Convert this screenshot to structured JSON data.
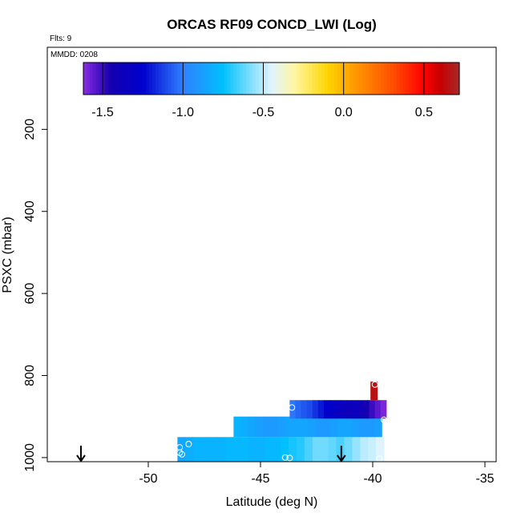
{
  "chart_data": {
    "type": "heatmap",
    "title": "ORCAS RF09 CONCD_LWI (Log)",
    "flights_label": "Flts: 9",
    "date_label": "MMDD: 0208",
    "xlabel": "Latitude (deg N)",
    "ylabel": "PSXC (mbar)",
    "xlim": [
      -54.5,
      -34.5
    ],
    "ylim": [
      1010,
      0
    ],
    "x_ticks": [
      -50,
      -45,
      -40,
      -35
    ],
    "y_ticks": [
      200,
      400,
      600,
      800,
      1000
    ],
    "x_tick_labels": [
      "-50",
      "-45",
      "-40",
      "-35"
    ],
    "y_tick_labels": [
      "200",
      "400",
      "600",
      "800",
      "1000"
    ],
    "colorbar": {
      "range": [
        -1.62,
        0.72
      ],
      "ticks": [
        -1.5,
        -1.0,
        -0.5,
        0.0,
        0.5
      ],
      "tick_labels": [
        "-1.5",
        "-1.0",
        "-0.5",
        "0.0",
        "0.5"
      ],
      "stops": [
        {
          "v": -1.62,
          "c": "#8a2be2"
        },
        {
          "v": -1.45,
          "c": "#1500b0"
        },
        {
          "v": -1.25,
          "c": "#0000cd"
        },
        {
          "v": -1.0,
          "c": "#2f80ff"
        },
        {
          "v": -0.75,
          "c": "#00c0ff"
        },
        {
          "v": -0.45,
          "c": "#dff4ff"
        },
        {
          "v": -0.3,
          "c": "#fff6a0"
        },
        {
          "v": -0.1,
          "c": "#ffd500"
        },
        {
          "v": 0.05,
          "c": "#ffa000"
        },
        {
          "v": 0.3,
          "c": "#ff5000"
        },
        {
          "v": 0.5,
          "c": "#ff0000"
        },
        {
          "v": 0.6,
          "c": "#c80000"
        },
        {
          "v": 0.72,
          "c": "#a52a2a"
        }
      ]
    },
    "layers": [
      {
        "p_top": 950,
        "p_bot": 1010,
        "x0": -48.7,
        "x1": -39.5,
        "values": [
          -0.85,
          -0.82,
          -0.8,
          -0.8,
          -0.8,
          -0.8,
          -0.78,
          -0.78,
          -0.78,
          -0.8,
          -0.8,
          -0.78,
          -0.78,
          -0.75,
          -0.72,
          -0.7,
          -0.65,
          -0.6,
          -0.6,
          -0.62,
          -0.65,
          -0.6,
          -0.55,
          -0.5,
          -0.48,
          -0.45
        ]
      },
      {
        "p_top": 900,
        "p_bot": 950,
        "x0": -46.2,
        "x1": -39.6,
        "values": [
          -0.8,
          -0.82,
          -0.85,
          -0.88,
          -0.9,
          -0.9,
          -0.88,
          -0.86,
          -0.85,
          -0.85,
          -0.87,
          -0.9,
          -0.9,
          -0.88,
          -0.86,
          -0.86,
          -0.88,
          -0.9,
          -0.9,
          -0.88
        ]
      },
      {
        "p_top": 860,
        "p_bot": 905,
        "x0": -43.7,
        "x1": -39.4,
        "values": [
          -1.02,
          -1.05,
          -1.08,
          -1.1,
          -1.15,
          -1.2,
          -1.25,
          -1.3,
          -1.32,
          -1.35,
          -1.38,
          -1.35,
          -1.4,
          -1.45,
          -1.5,
          -1.55,
          -1.6
        ]
      },
      {
        "p_top": 815,
        "p_bot": 860,
        "x0": -40.1,
        "x1": -39.8,
        "values": [
          0.65
        ]
      }
    ],
    "markers": [
      {
        "lat": -43.6,
        "p": 878
      },
      {
        "lat": -39.9,
        "p": 822
      },
      {
        "lat": -39.5,
        "p": 908
      },
      {
        "lat": -48.2,
        "p": 967
      },
      {
        "lat": -48.6,
        "p": 975
      },
      {
        "lat": -48.6,
        "p": 988
      },
      {
        "lat": -48.5,
        "p": 992
      },
      {
        "lat": -43.9,
        "p": 1000
      },
      {
        "lat": -43.7,
        "p": 1001
      },
      {
        "lat": -39.7,
        "p": 1003
      }
    ],
    "arrows": [
      {
        "lat": -53.0
      },
      {
        "lat": -41.4
      }
    ]
  }
}
